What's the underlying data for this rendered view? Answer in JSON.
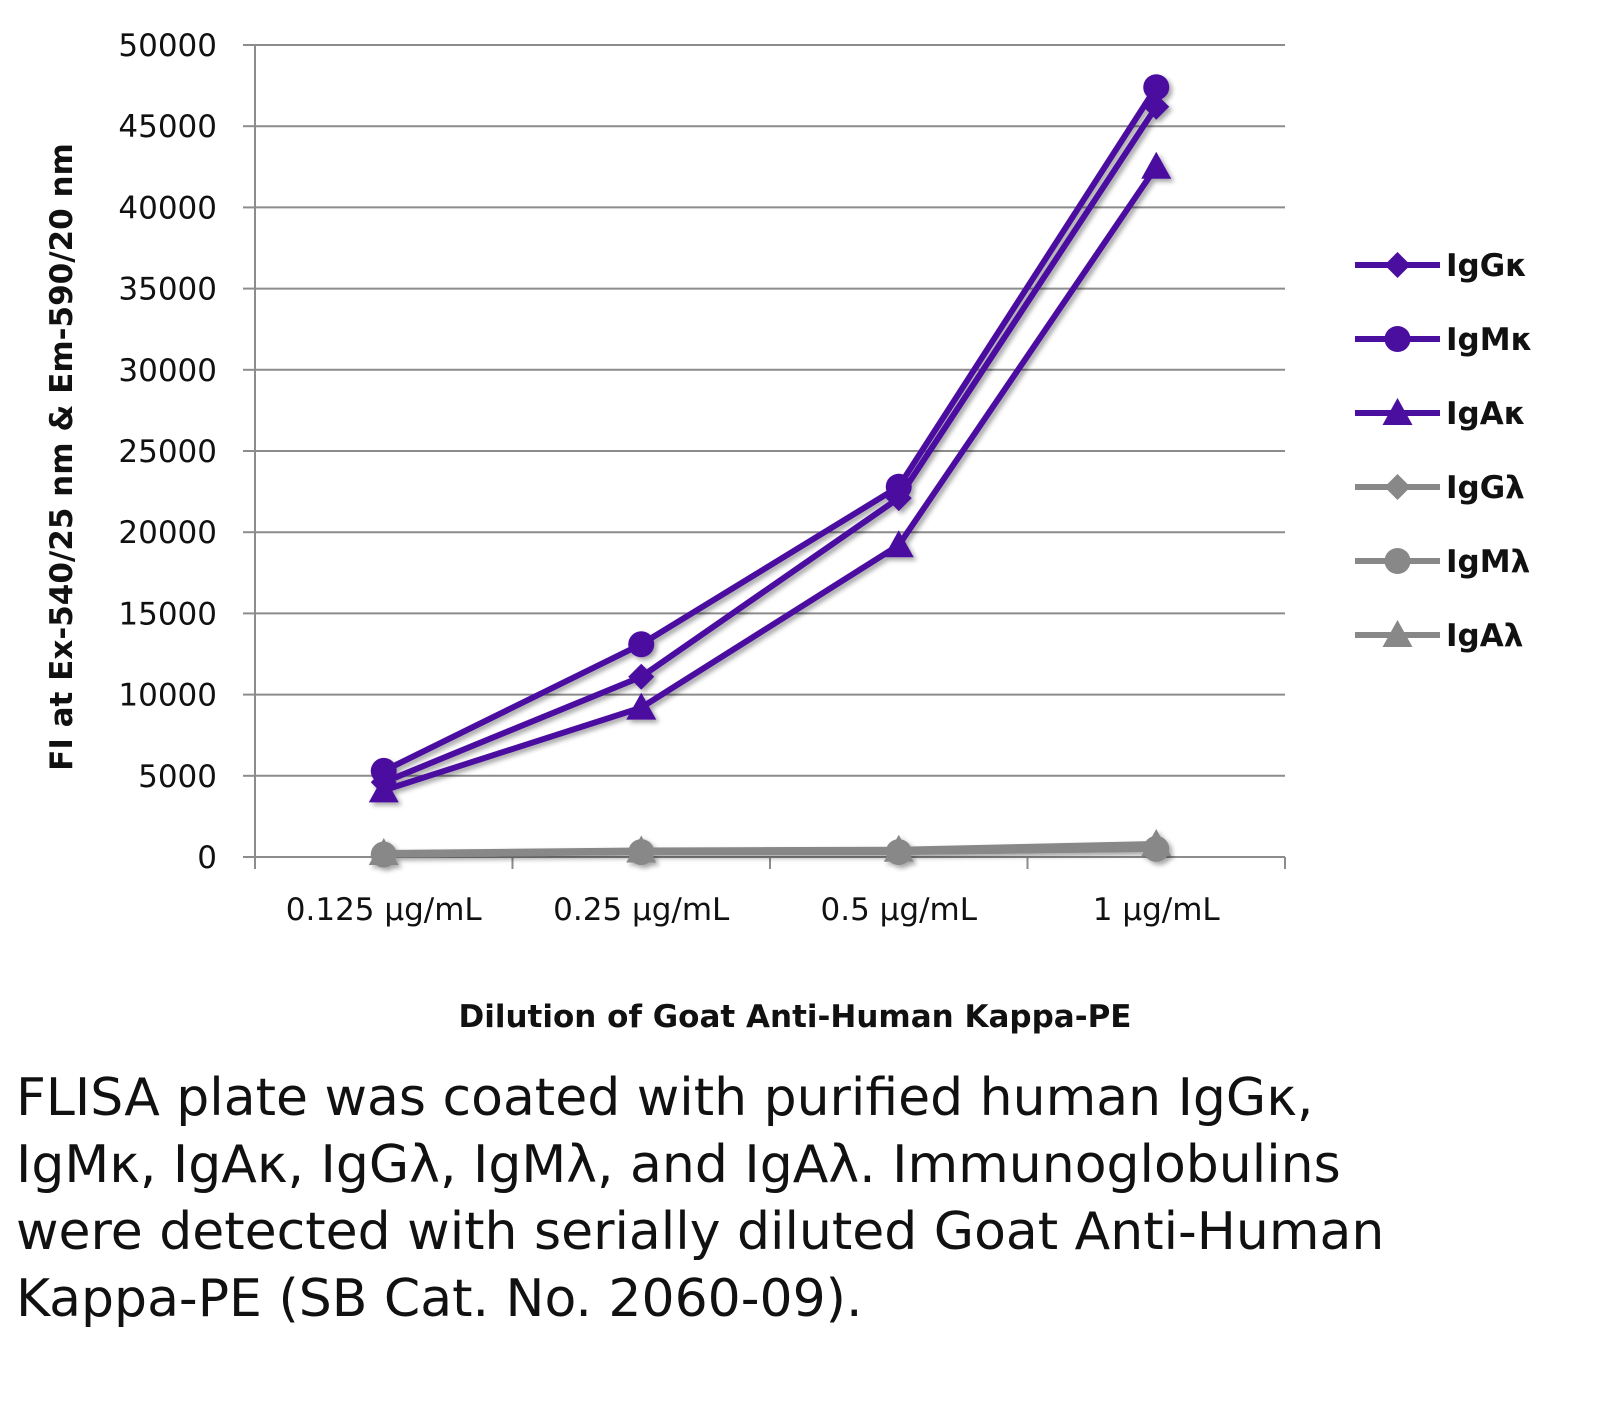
{
  "chart_data": {
    "type": "line",
    "title": "",
    "xlabel": "Dilution of Goat Anti-Human Kappa-PE",
    "ylabel": "FI at Ex-540/25 nm & Em-590/20 nm",
    "categories": [
      "0.125 µg/mL",
      "0.25 µg/mL",
      "0.5 µg/mL",
      "1 µg/mL"
    ],
    "ylim": [
      0,
      50000
    ],
    "yticks": [
      0,
      5000,
      10000,
      15000,
      20000,
      25000,
      30000,
      35000,
      40000,
      45000,
      50000
    ],
    "grid": "horizontal",
    "legend_position": "right",
    "series": [
      {
        "name": "IgGκ",
        "marker": "diamond",
        "color": "#4b0fa0",
        "values": [
          4600,
          11100,
          22100,
          46200
        ]
      },
      {
        "name": "IgMκ",
        "marker": "circle",
        "color": "#4b0fa0",
        "values": [
          5300,
          13100,
          22800,
          47400
        ]
      },
      {
        "name": "IgAκ",
        "marker": "triangle",
        "color": "#4b0fa0",
        "values": [
          4100,
          9200,
          19200,
          42500
        ]
      },
      {
        "name": "IgGλ",
        "marker": "diamond",
        "color": "#888888",
        "values": [
          200,
          350,
          350,
          600
        ]
      },
      {
        "name": "IgMλ",
        "marker": "circle",
        "color": "#888888",
        "values": [
          150,
          300,
          300,
          500
        ]
      },
      {
        "name": "IgAλ",
        "marker": "triangle",
        "color": "#888888",
        "values": [
          250,
          400,
          450,
          800
        ]
      }
    ]
  },
  "caption": "FLISA plate was coated with purified human IgGκ, IgMκ, IgAκ, IgGλ, IgMλ, and IgAλ. Immunoglobulins were detected with serially diluted Goat Anti-Human Kappa-PE (SB Cat. No. 2060-09)."
}
